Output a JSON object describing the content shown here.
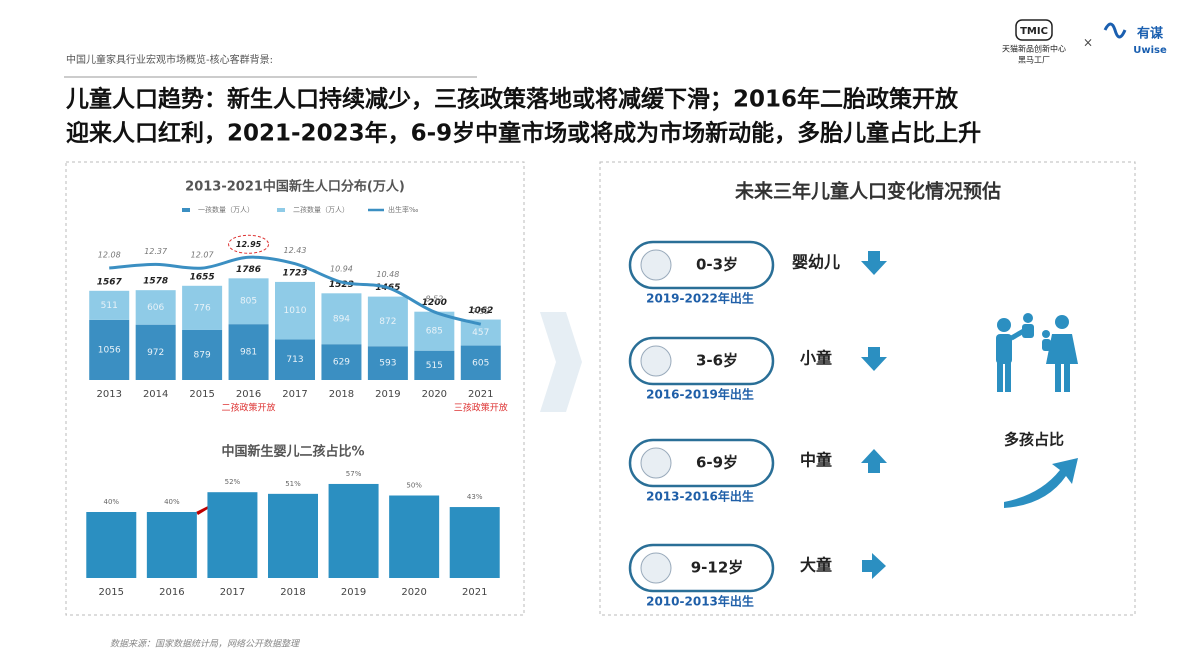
{
  "header": {
    "subtitle": "中国儿童家具行业宏观市场概览-核心客群背景:",
    "title_lines": [
      "儿童人口趋势：新生人口持续减少，三孩政策落地或将减缓下滑；2016年二胎政策开放",
      "迎来人口红利，2021-2023年，6-9岁中童市场或将成为市场新动能，多胎儿童占比上升"
    ],
    "logos": [
      "TMIC",
      "天猫新品创新中心",
      "黑马工厂",
      "×",
      "有谋",
      "Uwise"
    ]
  },
  "chart_data": [
    {
      "type": "bar",
      "stacked": true,
      "title": "2013-2021中国新生人口分布(万人)",
      "categories": [
        "2013",
        "2014",
        "2015",
        "2016",
        "2017",
        "2018",
        "2019",
        "2020",
        "2021"
      ],
      "series": [
        {
          "name": "一孩数量（万人）",
          "color": "#3b8fc2",
          "values": [
            1056,
            972,
            879,
            981,
            713,
            629,
            593,
            515,
            605
          ]
        },
        {
          "name": "二孩数量（万人）",
          "color": "#8fcbe7",
          "values": [
            511,
            606,
            776,
            805,
            1010,
            894,
            872,
            685,
            457
          ]
        },
        {
          "name": "出生率‰",
          "type": "line",
          "axis": "y2",
          "color": "#3b8fc2",
          "values": [
            12.08,
            12.37,
            12.07,
            12.95,
            12.43,
            10.94,
            10.48,
            8.52,
            7.52
          ]
        }
      ],
      "totals": [
        1567,
        1578,
        1655,
        1786,
        1723,
        1523,
        1465,
        1200,
        1062
      ],
      "annotations": [
        {
          "category": "2016",
          "text": "二孩政策开放"
        },
        {
          "category": "2021",
          "text": "三孩政策开放"
        }
      ],
      "ylim": [
        0,
        2600
      ],
      "y2lim": [
        3,
        15
      ]
    },
    {
      "type": "bar",
      "title": "中国新生婴儿二孩占比%",
      "categories": [
        "2015",
        "2016",
        "2017",
        "2018",
        "2019",
        "2020",
        "2021"
      ],
      "values": [
        40,
        40,
        52,
        51,
        57,
        50,
        43
      ],
      "value_labels": [
        "40%",
        "40%",
        "52%",
        "51%",
        "57%",
        "50%",
        "43%"
      ],
      "color": "#2b8fc1",
      "ylim": [
        0,
        60
      ]
    }
  ],
  "forecast": {
    "title": "未来三年儿童人口变化情况预估",
    "groups": [
      {
        "age": "0-3岁",
        "name": "婴幼儿",
        "born": "2019-2022年出生"
      },
      {
        "age": "3-6岁",
        "name": "小童",
        "born": "2016-2019年出生"
      },
      {
        "age": "6-9岁",
        "name": "中童",
        "born": "2013-2016年出生"
      },
      {
        "age": "9-12岁",
        "name": "大童",
        "born": "2010-2013年出生"
      }
    ],
    "note": "多孩占比"
  },
  "source": "数据来源：国家数据统计局，网络公开数据整理"
}
